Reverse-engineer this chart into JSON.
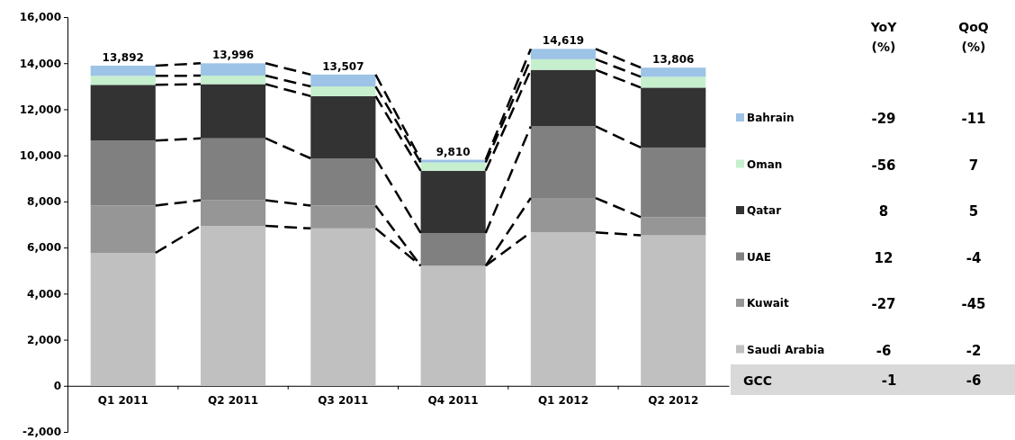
{
  "chart_data": {
    "type": "bar",
    "stacked": true,
    "categories": [
      "Q1 2011",
      "Q2 2011",
      "Q3 2011",
      "Q4 2011",
      "Q1 2012",
      "Q2 2012"
    ],
    "series": [
      {
        "name": "Saudi Arabia",
        "color": "#c0c0c0",
        "values": [
          5770,
          6940,
          6830,
          5210,
          6660,
          6530
        ]
      },
      {
        "name": "Kuwait",
        "color": "#969696",
        "values": [
          2050,
          1110,
          990,
          0,
          1490,
          790
        ]
      },
      {
        "name": "UAE",
        "color": "#808080",
        "values": [
          2820,
          2690,
          2050,
          1420,
          3110,
          3020
        ]
      },
      {
        "name": "Qatar",
        "color": "#333333",
        "values": [
          2420,
          2350,
          2700,
          2700,
          2450,
          2600
        ]
      },
      {
        "name": "Oman",
        "color": "#c6efce",
        "values": [
          390,
          370,
          420,
          360,
          460,
          470
        ]
      },
      {
        "name": "Bahrain",
        "color": "#9dc3e6",
        "values": [
          442,
          536,
          517,
          120,
          449,
          396
        ]
      }
    ],
    "totals": [
      "13,892",
      "13,996",
      "13,507",
      "9,810",
      "14,619",
      "13,806"
    ],
    "ylim": [
      -2000,
      16000
    ],
    "yticks": [
      {
        "value": -2000,
        "label": "-2,000"
      },
      0,
      {
        "value": 2000,
        "label": "2,000"
      },
      {
        "value": 4000,
        "label": "4,000"
      },
      {
        "value": 6000,
        "label": "6,000"
      },
      {
        "value": 8000,
        "label": "8,000"
      },
      {
        "value": 10000,
        "label": "10,000"
      },
      {
        "value": 12000,
        "label": "12,000"
      },
      {
        "value": 14000,
        "label": "14,000"
      },
      {
        "value": 16000,
        "label": "16,000"
      }
    ],
    "legend": "right",
    "grid": false,
    "annotations": [
      "YoY\n(%)",
      "QoQ\n(%)",
      "-29",
      "-11",
      "-56",
      "7",
      "8",
      "5",
      "12",
      "-4",
      "-27",
      "-45",
      "-6",
      "-2",
      "GCC",
      "-1",
      "-6"
    ]
  }
}
